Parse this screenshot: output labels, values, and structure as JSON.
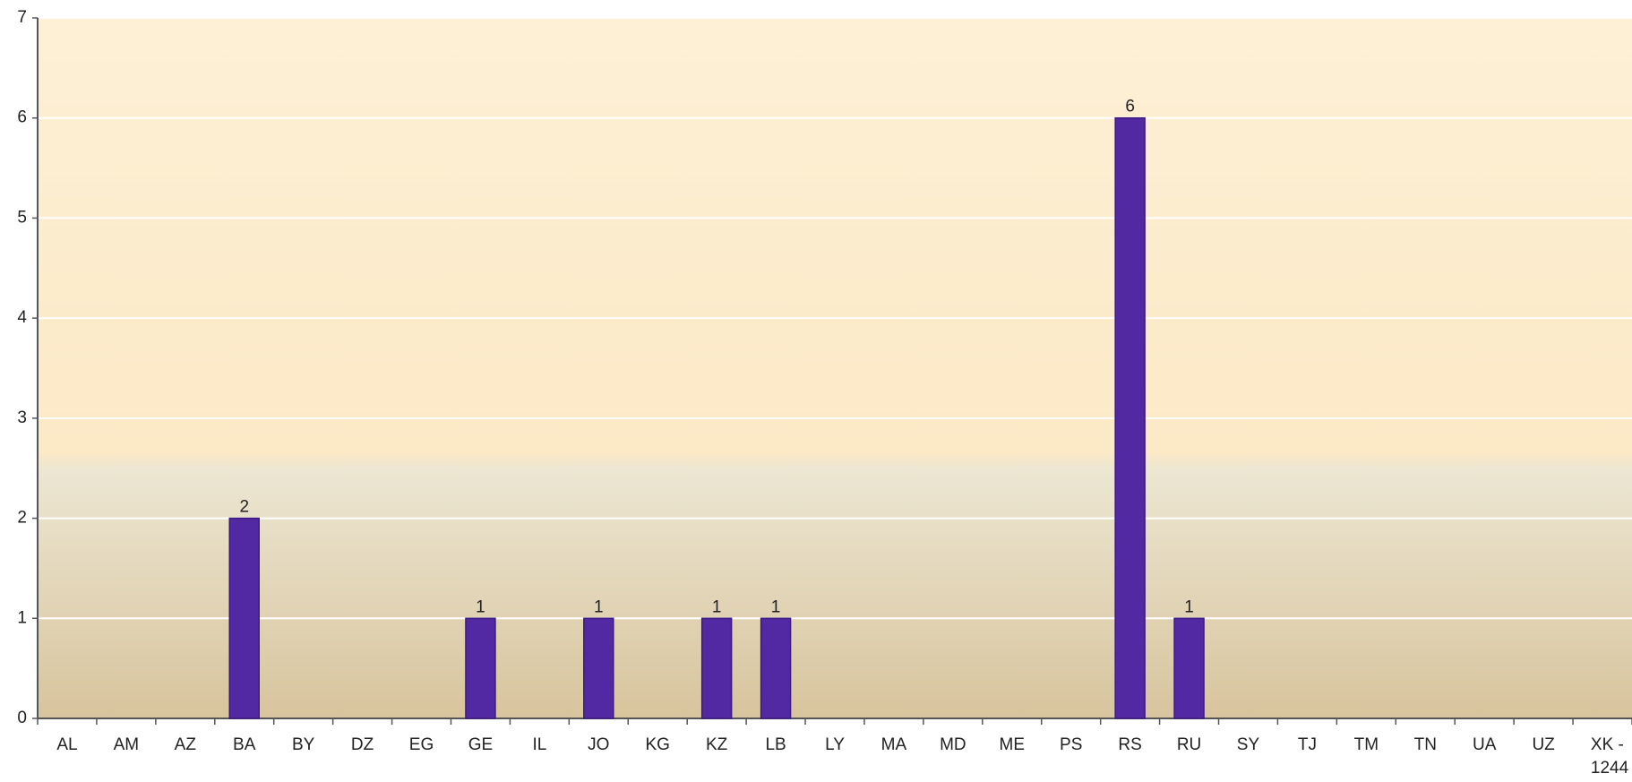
{
  "chart_data": {
    "type": "bar",
    "categories": [
      "AL",
      "AM",
      "AZ",
      "BA",
      "BY",
      "DZ",
      "EG",
      "GE",
      "IL",
      "JO",
      "KG",
      "KZ",
      "LB",
      "LY",
      "MA",
      "MD",
      "ME",
      "PS",
      "RS",
      "RU",
      "SY",
      "TJ",
      "TM",
      "TN",
      "UA",
      "UZ",
      "XK - 1244"
    ],
    "values": [
      0,
      0,
      0,
      2,
      0,
      0,
      0,
      1,
      0,
      1,
      0,
      1,
      1,
      0,
      0,
      0,
      0,
      0,
      6,
      1,
      0,
      0,
      0,
      0,
      0,
      0,
      0
    ],
    "color": "#5228a3",
    "ylim": [
      0,
      7
    ],
    "yticks": [
      0,
      1,
      2,
      3,
      4,
      5,
      6,
      7
    ],
    "grid": true
  }
}
